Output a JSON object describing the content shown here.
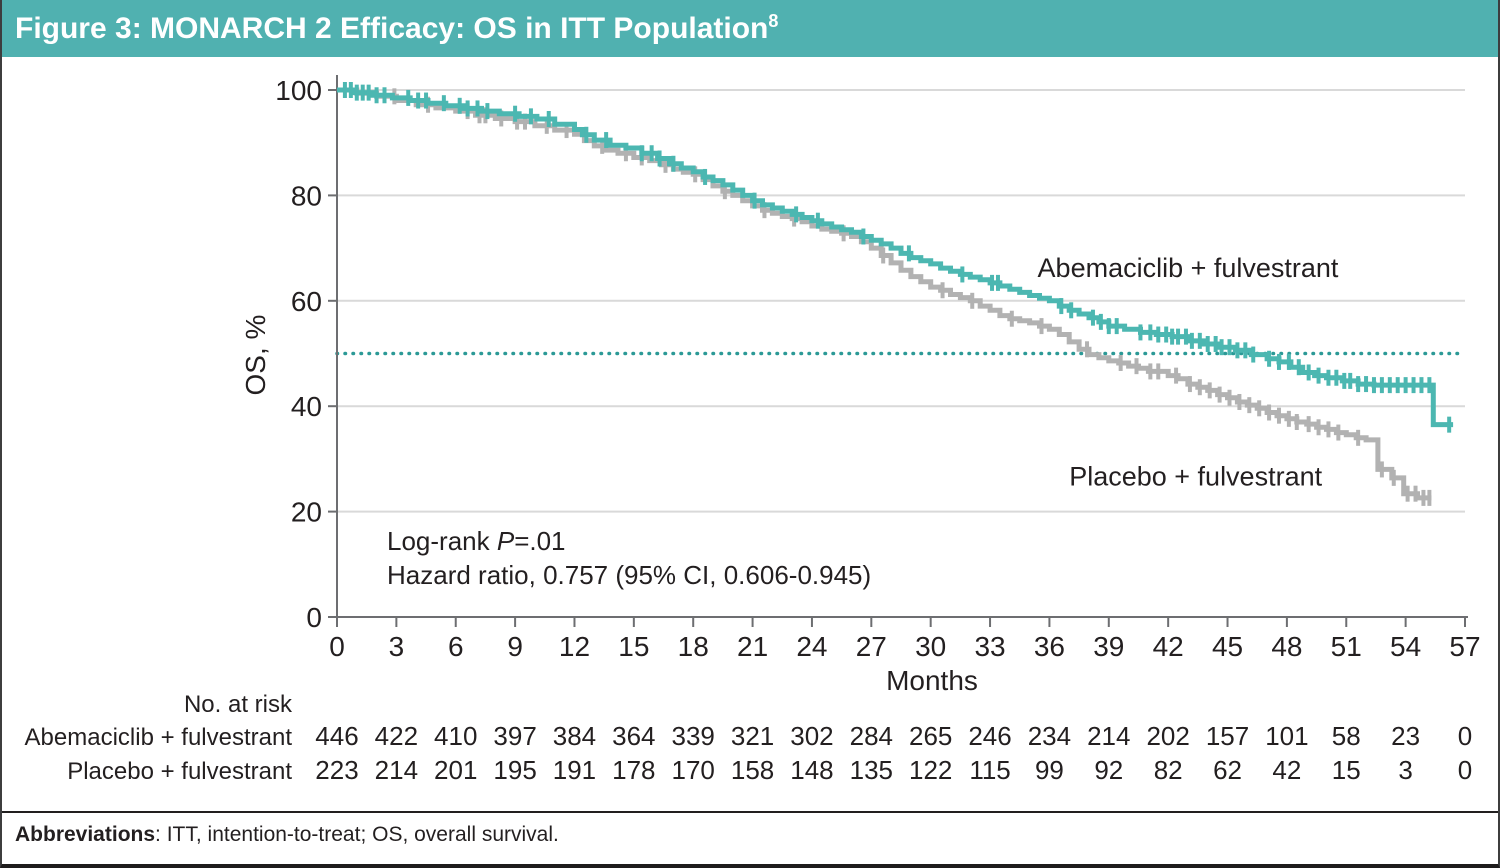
{
  "title_bar": {
    "text": "Figure 3: MONARCH 2 Efficacy: OS in ITT Population",
    "superscript": "8"
  },
  "colors": {
    "title_bar_bg": "#50b1b0",
    "title_text": "#ffffff",
    "abemaciclib": "#4cb7b1",
    "abemaciclib_label": "#45aaa8",
    "placebo": "#b2b2b2",
    "placebo_label": "#b2b2b2",
    "reference_dotted": "#2b9996",
    "gridline": "#d9d9d9",
    "axis": "#6d6e71",
    "text": "#231f20"
  },
  "chart_data": {
    "type": "line",
    "subtype": "kaplan-meier-step",
    "title": "",
    "xlabel": "Months",
    "ylabel": "OS, %",
    "xlim": [
      0,
      57
    ],
    "ylim": [
      0,
      100
    ],
    "xticks": [
      0,
      3,
      6,
      9,
      12,
      15,
      18,
      21,
      24,
      27,
      30,
      33,
      36,
      39,
      42,
      45,
      48,
      51,
      54,
      57
    ],
    "yticks": [
      0,
      20,
      40,
      60,
      80,
      100
    ],
    "grid": "horizontal",
    "reference_line_y": 50,
    "legend_position": "inline-labels",
    "annotation": {
      "line1_prefix": "Log-rank ",
      "line1_italic": "P",
      "line1_suffix": "=.01",
      "line2": "Hazard ratio, 0.757 (95% CI, 0.606-0.945)"
    },
    "series": [
      {
        "name": "Abemaciclib + fulvestrant",
        "color": "#4cb7b1",
        "label_color": "#45aaa8",
        "label_anchor": {
          "month": 35.4,
          "pct": 64.5
        },
        "end_month": 56.4,
        "steps": [
          [
            0,
            100
          ],
          [
            0.9,
            99.5
          ],
          [
            1.8,
            99
          ],
          [
            2.8,
            98.5
          ],
          [
            3.7,
            98
          ],
          [
            4.6,
            97.5
          ],
          [
            5.5,
            97
          ],
          [
            6.4,
            96.5
          ],
          [
            7.3,
            96
          ],
          [
            8.2,
            95.5
          ],
          [
            9.2,
            95
          ],
          [
            10.1,
            94.5
          ],
          [
            11,
            93.5
          ],
          [
            12,
            92.5
          ],
          [
            12.4,
            91.5
          ],
          [
            13,
            90.5
          ],
          [
            13.8,
            89.5
          ],
          [
            14.6,
            89
          ],
          [
            15.4,
            88
          ],
          [
            16.2,
            87
          ],
          [
            16.8,
            86
          ],
          [
            17.4,
            85.2
          ],
          [
            18,
            84.5
          ],
          [
            18.5,
            83.5
          ],
          [
            19,
            82.8
          ],
          [
            19.5,
            82
          ],
          [
            20,
            81
          ],
          [
            20.5,
            80
          ],
          [
            21,
            79
          ],
          [
            21.5,
            78.2
          ],
          [
            22,
            77.6
          ],
          [
            22.5,
            77
          ],
          [
            23,
            76.4
          ],
          [
            23.5,
            75.8
          ],
          [
            24,
            75.2
          ],
          [
            24.5,
            74.6
          ],
          [
            25,
            74
          ],
          [
            25.5,
            73.5
          ],
          [
            26,
            73
          ],
          [
            26.5,
            72.2
          ],
          [
            27,
            71.5
          ],
          [
            27.5,
            70.8
          ],
          [
            28,
            70
          ],
          [
            28.5,
            69
          ],
          [
            29,
            68.2
          ],
          [
            29.5,
            67.6
          ],
          [
            30,
            67
          ],
          [
            30.5,
            66.2
          ],
          [
            31,
            65.6
          ],
          [
            31.5,
            65
          ],
          [
            32,
            64.5
          ],
          [
            32.5,
            64
          ],
          [
            33,
            63.4
          ],
          [
            33.5,
            62.8
          ],
          [
            34,
            62.2
          ],
          [
            34.5,
            61.6
          ],
          [
            35,
            61
          ],
          [
            35.5,
            60.5
          ],
          [
            36,
            60
          ],
          [
            36.5,
            59
          ],
          [
            37,
            58.2
          ],
          [
            37.5,
            57.5
          ],
          [
            38,
            56.8
          ],
          [
            38.5,
            56
          ],
          [
            39,
            55.2
          ],
          [
            39.8,
            54.6
          ],
          [
            40.6,
            54
          ],
          [
            41.4,
            53.6
          ],
          [
            42.2,
            53.2
          ],
          [
            43,
            52.4
          ],
          [
            43.8,
            51.8
          ],
          [
            44.6,
            51.2
          ],
          [
            45.4,
            50.6
          ],
          [
            46.2,
            49.8
          ],
          [
            47,
            49
          ],
          [
            47.6,
            48.4
          ],
          [
            48.2,
            47.4
          ],
          [
            48.8,
            46.4
          ],
          [
            49.4,
            45.8
          ],
          [
            50,
            45.4
          ],
          [
            50.8,
            44.8
          ],
          [
            51.6,
            44.2
          ],
          [
            52.4,
            44
          ],
          [
            55.4,
            36.5
          ]
        ],
        "censor_months": [
          0.4,
          0.7,
          1.0,
          1.3,
          1.6,
          2.0,
          2.4,
          3.6,
          4.1,
          4.5,
          5.4,
          6.2,
          6.6,
          7.1,
          7.6,
          9.0,
          9.8,
          10.7,
          12.6,
          13.6,
          15.4,
          15.9,
          16.3,
          17.0,
          18.6,
          21.1,
          23.2,
          24.3,
          26.6,
          28.9,
          31.6,
          33.1,
          33.4,
          36.6,
          37.1,
          38.2,
          38.6,
          39.0,
          39.4,
          40.6,
          41.1,
          41.5,
          41.9,
          42.2,
          42.5,
          42.9,
          43.2,
          43.6,
          44.0,
          44.4,
          44.7,
          45.1,
          45.5,
          45.9,
          46.3,
          47.1,
          47.6,
          48.1,
          48.6,
          49.1,
          49.6,
          50.1,
          50.5,
          50.9,
          51.2,
          51.6,
          52.0,
          52.4,
          52.8,
          53.2,
          53.6,
          54.0,
          54.4,
          54.8,
          55.2,
          56.2
        ]
      },
      {
        "name": "Placebo + fulvestrant",
        "color": "#b2b2b2",
        "label_color": "#b2b2b2",
        "label_anchor": {
          "month": 37.0,
          "pct": 25.0
        },
        "end_month": 55.3,
        "steps": [
          [
            0,
            100
          ],
          [
            1,
            99.4
          ],
          [
            2,
            98.8
          ],
          [
            3,
            98
          ],
          [
            4,
            97.2
          ],
          [
            5,
            96.6
          ],
          [
            6,
            96
          ],
          [
            7,
            95.2
          ],
          [
            8,
            94.6
          ],
          [
            9,
            94
          ],
          [
            10,
            93.2
          ],
          [
            11,
            92.4
          ],
          [
            12,
            91.6
          ],
          [
            12.5,
            90.4
          ],
          [
            13,
            89.4
          ],
          [
            13.6,
            88.6
          ],
          [
            14.2,
            88
          ],
          [
            15,
            87.2
          ],
          [
            15.8,
            86.6
          ],
          [
            16.4,
            85.8
          ],
          [
            17,
            85
          ],
          [
            17.5,
            84.4
          ],
          [
            18,
            84
          ],
          [
            18.5,
            83
          ],
          [
            19,
            81.8
          ],
          [
            19.5,
            80.8
          ],
          [
            20,
            80
          ],
          [
            20.5,
            79
          ],
          [
            21,
            78
          ],
          [
            21.5,
            77.2
          ],
          [
            22,
            76.6
          ],
          [
            22.5,
            76
          ],
          [
            23,
            75.6
          ],
          [
            23.5,
            75
          ],
          [
            24,
            74.2
          ],
          [
            24.5,
            73.6
          ],
          [
            25,
            73.2
          ],
          [
            25.5,
            72.8
          ],
          [
            26,
            72.2
          ],
          [
            26.5,
            71.2
          ],
          [
            27,
            70
          ],
          [
            27.5,
            68.6
          ],
          [
            28,
            67.2
          ],
          [
            28.5,
            65.8
          ],
          [
            29,
            64.6
          ],
          [
            29.5,
            63.6
          ],
          [
            30,
            62.6
          ],
          [
            30.5,
            62
          ],
          [
            31,
            61.2
          ],
          [
            31.5,
            60.6
          ],
          [
            32,
            60
          ],
          [
            32.5,
            59
          ],
          [
            33,
            58.2
          ],
          [
            33.5,
            57.2
          ],
          [
            34,
            56.6
          ],
          [
            34.5,
            56.2
          ],
          [
            35,
            55.8
          ],
          [
            35.5,
            55.2
          ],
          [
            36,
            54.6
          ],
          [
            36.5,
            53.6
          ],
          [
            37,
            52.2
          ],
          [
            37.5,
            50.8
          ],
          [
            38,
            49.8
          ],
          [
            38.5,
            49.2
          ],
          [
            39,
            48.6
          ],
          [
            39.5,
            48.2
          ],
          [
            40,
            47.6
          ],
          [
            40.5,
            47.2
          ],
          [
            41,
            46.6
          ],
          [
            42,
            45.8
          ],
          [
            42.5,
            45.2
          ],
          [
            43,
            44.2
          ],
          [
            43.5,
            43.6
          ],
          [
            44,
            43
          ],
          [
            44.5,
            42.2
          ],
          [
            45,
            41.6
          ],
          [
            45.5,
            40.8
          ],
          [
            46,
            40.2
          ],
          [
            46.5,
            39.6
          ],
          [
            47,
            38.8
          ],
          [
            47.5,
            38.2
          ],
          [
            48,
            37.6
          ],
          [
            48.5,
            37
          ],
          [
            49,
            36.6
          ],
          [
            49.5,
            36
          ],
          [
            50,
            35.6
          ],
          [
            50.5,
            35
          ],
          [
            51,
            34.6
          ],
          [
            51.5,
            34
          ],
          [
            52,
            33.6
          ],
          [
            52.6,
            28
          ],
          [
            53.3,
            26.4
          ],
          [
            53.9,
            23.4
          ],
          [
            54.6,
            22.6
          ]
        ],
        "censor_months": [
          2.9,
          4.6,
          6.6,
          7.2,
          7.5,
          8.3,
          9.1,
          9.5,
          10.6,
          11.6,
          13.4,
          14.6,
          15.4,
          16.6,
          18.1,
          19.6,
          21.6,
          23.1,
          25.6,
          27.6,
          30.6,
          32.1,
          34.1,
          35.6,
          37.9,
          39.6,
          40.4,
          41.1,
          41.5,
          42.4,
          43.1,
          43.6,
          44.1,
          44.6,
          45.1,
          45.6,
          46.1,
          46.6,
          47.1,
          47.6,
          48.1,
          48.5,
          49.1,
          49.6,
          50.1,
          50.6,
          51.6,
          52.8,
          53.4,
          54.1,
          54.5,
          54.9,
          55.2
        ]
      }
    ]
  },
  "risk_table": {
    "header": "No. at risk",
    "months": [
      0,
      3,
      6,
      9,
      12,
      15,
      18,
      21,
      24,
      27,
      30,
      33,
      36,
      39,
      42,
      45,
      48,
      51,
      54,
      57
    ],
    "rows": [
      {
        "label": "Abemaciclib + fulvestrant",
        "color": "#45aaa8",
        "values": [
          446,
          422,
          410,
          397,
          384,
          364,
          339,
          321,
          302,
          284,
          265,
          246,
          234,
          214,
          202,
          157,
          101,
          58,
          23,
          0
        ]
      },
      {
        "label": "Placebo + fulvestrant",
        "color": "#b2b2b2",
        "values": [
          223,
          214,
          201,
          195,
          191,
          178,
          170,
          158,
          148,
          135,
          122,
          115,
          99,
          92,
          82,
          62,
          42,
          15,
          3,
          0
        ]
      }
    ]
  },
  "footer": {
    "label": "Abbreviations",
    "text": ": ITT, intention-to-treat; OS, overall survival."
  }
}
